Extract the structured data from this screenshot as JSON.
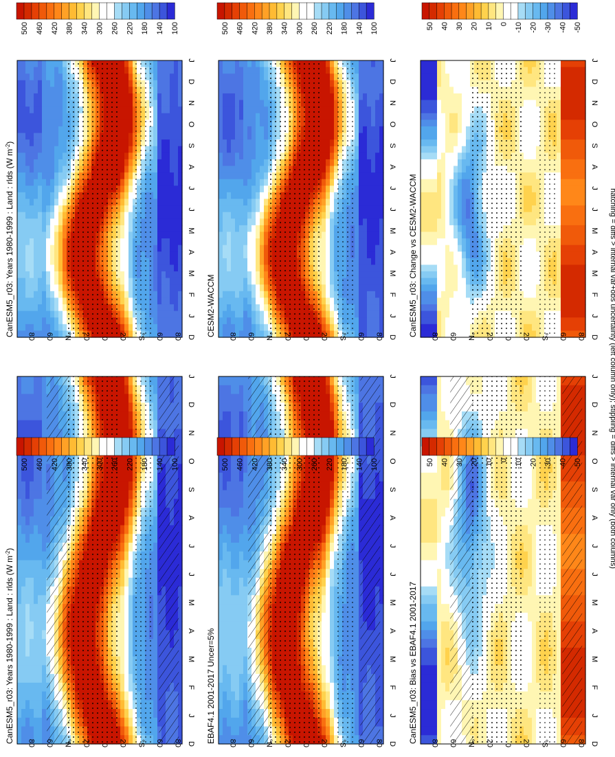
{
  "footnote": "hatching = diffs > internal var+obs uncertainty (left column only); stippling = diffs > internal var only (both columns)",
  "colors": {
    "abs": [
      "#2b2bd6",
      "#3c55dc",
      "#4d75e3",
      "#4f8ee8",
      "#52a6ec",
      "#68b9f0",
      "#86cbf3",
      "#a6dcf6",
      "#ffffff",
      "#ffffff",
      "#fff6b3",
      "#ffe680",
      "#ffd24d",
      "#ffbb33",
      "#ffa126",
      "#ff8719",
      "#f96f10",
      "#f05a0a",
      "#e54005",
      "#d42a00",
      "#c81500"
    ],
    "diff": [
      "#2b2bd6",
      "#3c55dc",
      "#4d75e3",
      "#4f8ee8",
      "#52a6ec",
      "#68b9f0",
      "#86cbf3",
      "#a6dcf6",
      "#ffffff",
      "#ffffff",
      "#fff6b3",
      "#ffe680",
      "#ffd24d",
      "#ffbb33",
      "#ffa126",
      "#ff8719",
      "#f96f10",
      "#f05a0a",
      "#e54005",
      "#d42a00",
      "#c81500"
    ]
  },
  "chart_data": [
    {
      "id": "p1",
      "type": "heatmap",
      "title": "CanESM5_r03: Years 1980-1999 : Land : rlds (W m",
      "title_unit_sup": "-2",
      "title_suffix": ")",
      "months": [
        "D",
        "J",
        "F",
        "M",
        "A",
        "M",
        "J",
        "J",
        "A",
        "S",
        "O",
        "N",
        "D",
        "J"
      ],
      "lat_ticks": [
        "80",
        "60",
        "°N",
        "20",
        "0",
        "20",
        "°S",
        "60",
        "80"
      ],
      "colorbar": {
        "labels": [
          "500",
          "460",
          "420",
          "380",
          "340",
          "300",
          "260",
          "220",
          "180",
          "140",
          "100"
        ],
        "range": [
          80,
          520
        ]
      },
      "hatching": true,
      "stippling": true
    },
    {
      "id": "p2",
      "type": "heatmap",
      "title": "CanESM5_r03: Years 1980-1999 : Land : rlds (W m",
      "title_unit_sup": "-2",
      "title_suffix": ")",
      "months": [
        "D",
        "J",
        "F",
        "M",
        "A",
        "M",
        "J",
        "J",
        "A",
        "S",
        "O",
        "N",
        "D",
        "J"
      ],
      "lat_ticks": [
        "80",
        "60",
        "°N",
        "20",
        "0",
        "20",
        "°S",
        "60",
        "80"
      ],
      "colorbar": {
        "labels": [
          "500",
          "460",
          "420",
          "380",
          "340",
          "300",
          "260",
          "220",
          "180",
          "140",
          "100"
        ],
        "range": [
          80,
          520
        ]
      },
      "hatching": false,
      "stippling": true
    },
    {
      "id": "p3",
      "type": "heatmap",
      "title": "EBAF4.1 2001-2017 Uncer=5%",
      "months": [
        "D",
        "J",
        "F",
        "M",
        "A",
        "M",
        "J",
        "J",
        "A",
        "S",
        "O",
        "N",
        "D",
        "J"
      ],
      "lat_ticks": [
        "80",
        "60",
        "°N",
        "20",
        "0",
        "20",
        "°S",
        "60",
        "80"
      ],
      "colorbar": {
        "labels": [
          "500",
          "460",
          "420",
          "380",
          "340",
          "300",
          "260",
          "220",
          "180",
          "140",
          "100"
        ],
        "range": [
          80,
          520
        ]
      },
      "hatching": true,
      "stippling": true
    },
    {
      "id": "p4",
      "type": "heatmap",
      "title": "CESM2-WACCM",
      "months": [
        "D",
        "J",
        "F",
        "M",
        "A",
        "M",
        "J",
        "J",
        "A",
        "S",
        "O",
        "N",
        "D",
        "J"
      ],
      "lat_ticks": [
        "80",
        "60",
        "°N",
        "20",
        "0",
        "20",
        "°S",
        "60",
        "80"
      ],
      "colorbar": {
        "labels": [
          "500",
          "460",
          "420",
          "380",
          "340",
          "300",
          "260",
          "220",
          "180",
          "140",
          "100"
        ],
        "range": [
          80,
          520
        ]
      },
      "hatching": false,
      "stippling": true
    },
    {
      "id": "p5",
      "type": "heatmap",
      "title": "CanESM5_r03: Bias vs EBAF4.1 2001-2017",
      "months": [
        "D",
        "J",
        "F",
        "M",
        "A",
        "M",
        "J",
        "J",
        "A",
        "S",
        "O",
        "N",
        "D",
        "J"
      ],
      "lat_ticks": [
        "80",
        "60",
        "°N",
        "20",
        "0",
        "20",
        "°S",
        "60",
        "80"
      ],
      "colorbar": {
        "labels": [
          "50",
          "40",
          "30",
          "20",
          "10",
          "0",
          "-10",
          "-20",
          "-30",
          "-40",
          "-50"
        ],
        "range": [
          -55,
          55
        ]
      },
      "hatching": true,
      "stippling": true
    },
    {
      "id": "p6",
      "type": "heatmap",
      "title": "CanESM5_r03: Change vs CESM2-WACCM",
      "months": [
        "D",
        "J",
        "F",
        "M",
        "A",
        "M",
        "J",
        "J",
        "A",
        "S",
        "O",
        "N",
        "D",
        "J"
      ],
      "lat_ticks": [
        "80",
        "60",
        "°N",
        "20",
        "0",
        "20",
        "°S",
        "60",
        "80"
      ],
      "colorbar": {
        "labels": [
          "50",
          "40",
          "30",
          "20",
          "10",
          "0",
          "-10",
          "-20",
          "-30",
          "-40",
          "-50"
        ],
        "range": [
          -55,
          55
        ]
      },
      "hatching": false,
      "stippling": true
    }
  ]
}
